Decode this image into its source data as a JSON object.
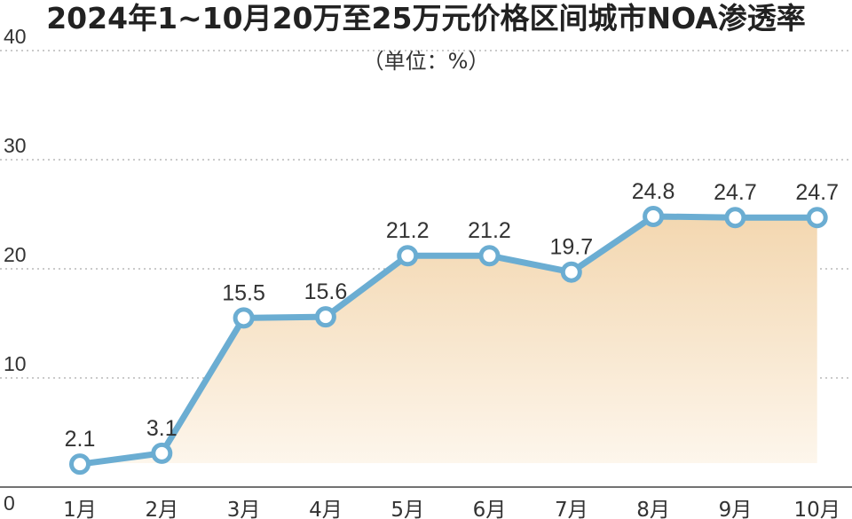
{
  "chart_data": {
    "type": "area",
    "title": "2024年1~10月20万至25万元价格区间城市NOA渗透率",
    "unit_label": "（单位：%）",
    "categories": [
      "1月",
      "2月",
      "3月",
      "4月",
      "5月",
      "6月",
      "7月",
      "8月",
      "9月",
      "10月"
    ],
    "values": [
      2.1,
      3.1,
      15.5,
      15.6,
      21.2,
      21.2,
      19.7,
      24.8,
      24.7,
      24.7
    ],
    "value_labels": [
      "2.1",
      "3.1",
      "15.5",
      "15.6",
      "21.2",
      "21.2",
      "19.7",
      "24.8",
      "24.7",
      "24.7"
    ],
    "y_ticks": [
      "0",
      "10",
      "20",
      "30",
      "40"
    ],
    "ylim": [
      0,
      40
    ],
    "grid": true,
    "colors": {
      "line": "#6badd2",
      "fill_top": "#f3d7b0",
      "fill_bottom": "#fdf6ec",
      "marker_fill": "#ffffff"
    }
  }
}
